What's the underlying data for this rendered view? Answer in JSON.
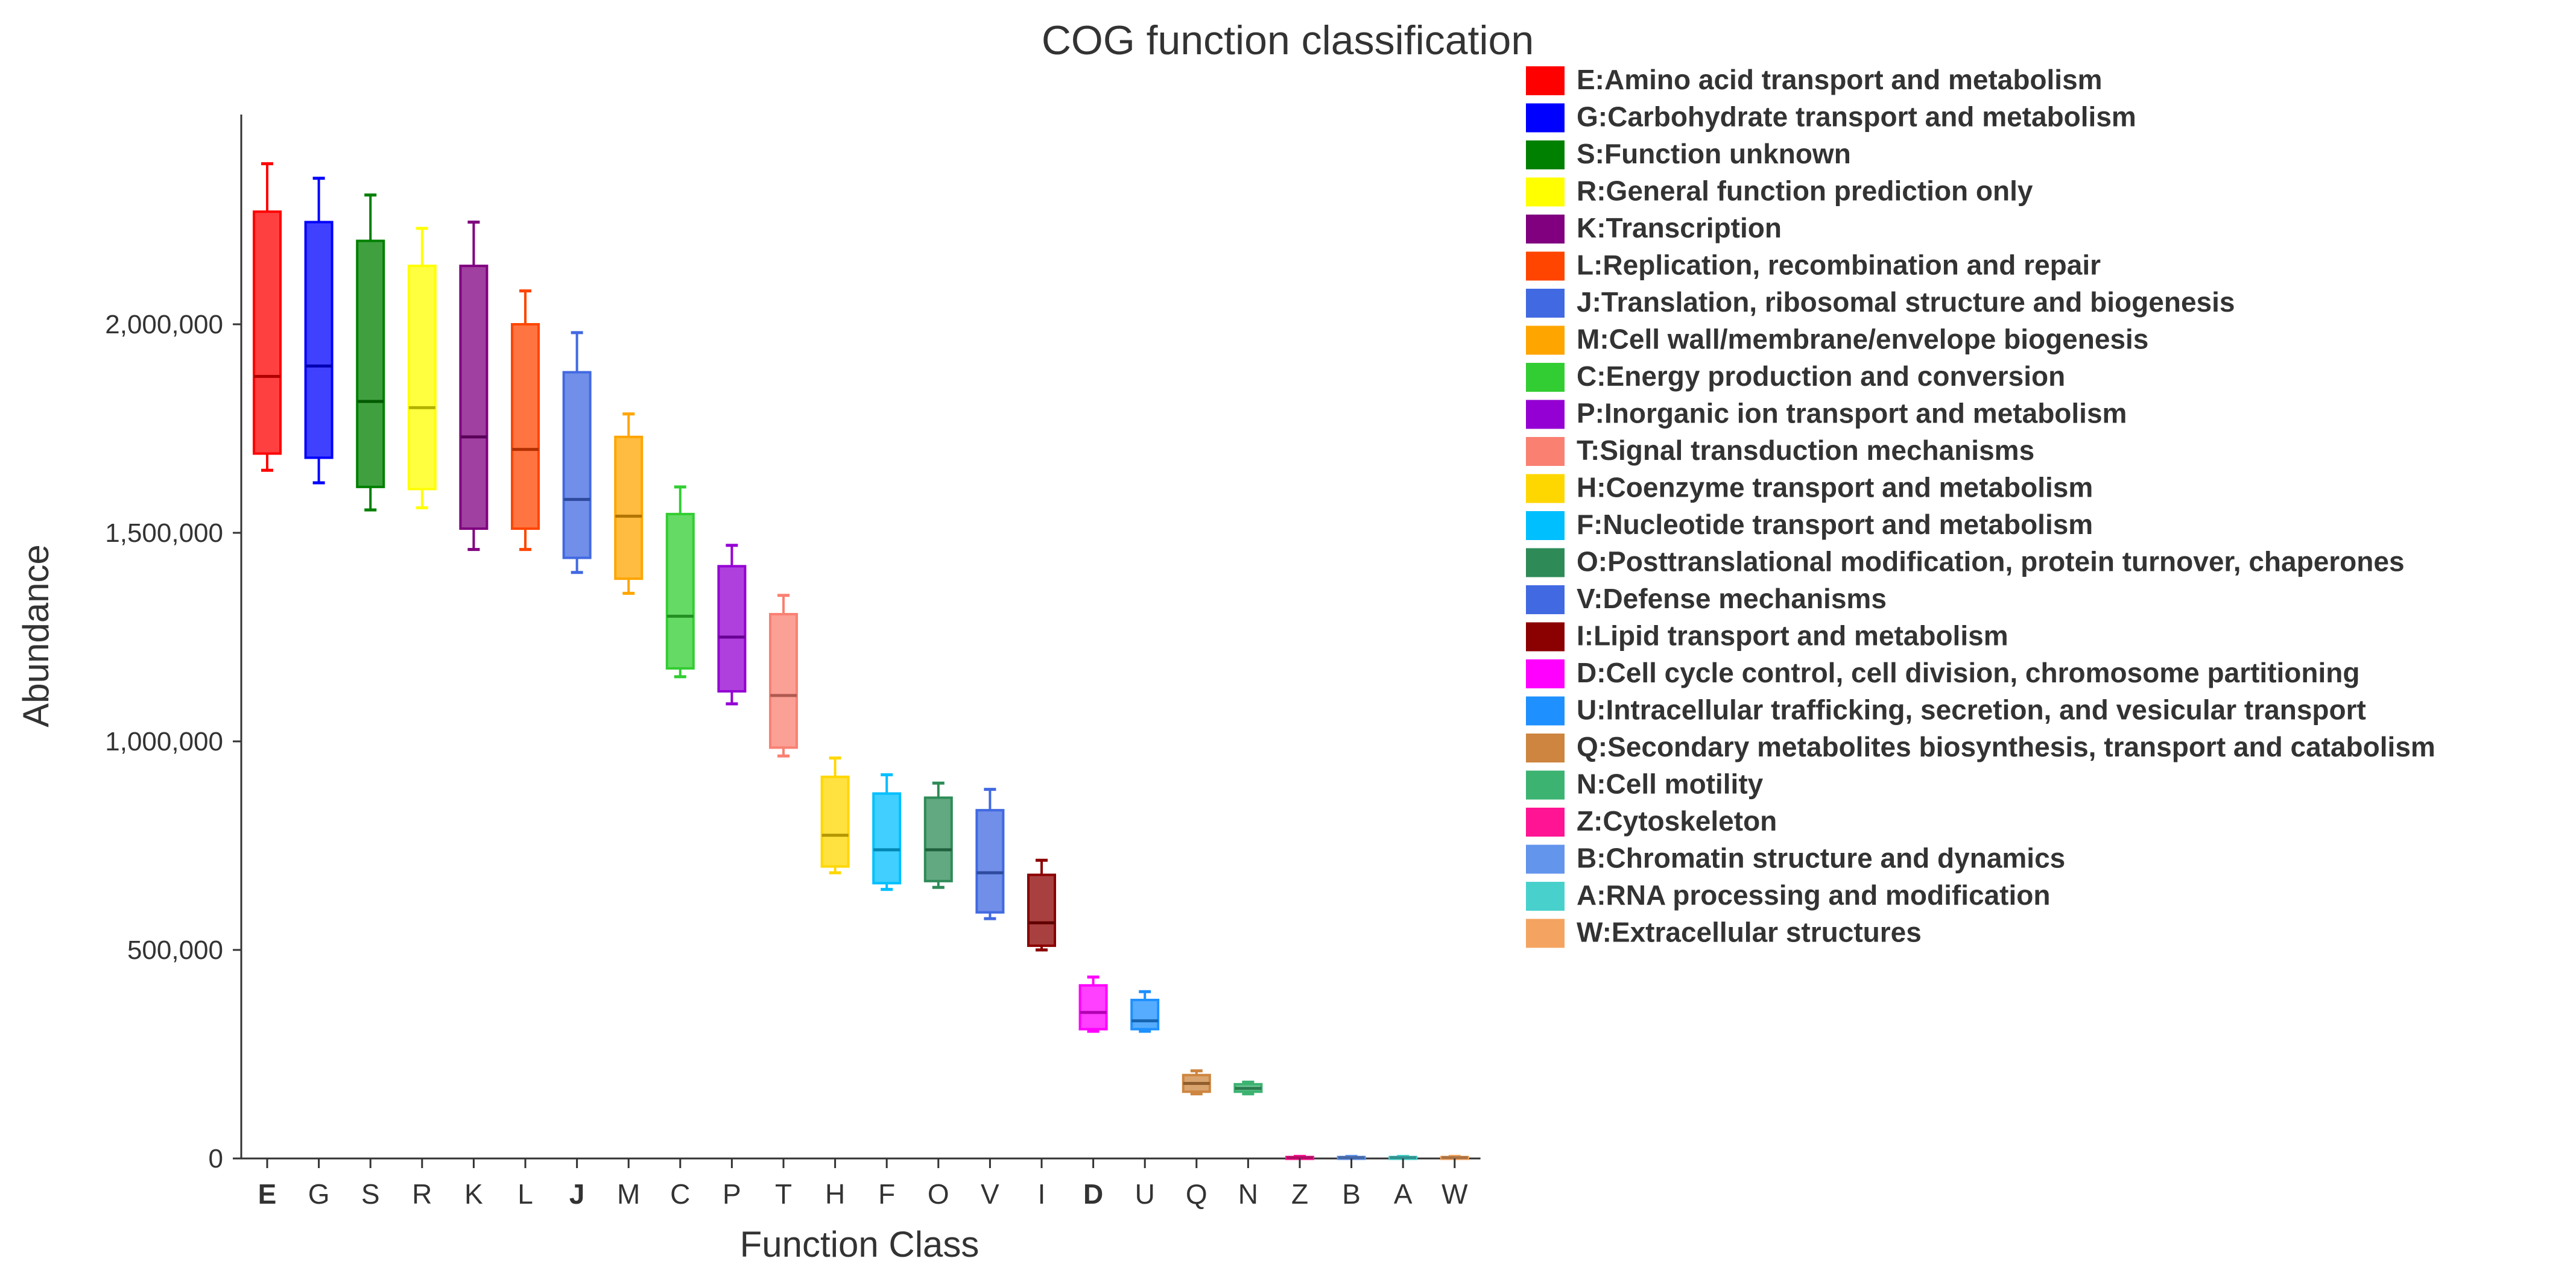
{
  "chart_data": {
    "type": "boxplot",
    "title": "COG function classification",
    "xlabel": "Function Class",
    "ylabel": "Abundance",
    "ylim": [
      0,
      2500000
    ],
    "yticks": [
      0,
      500000,
      1000000,
      1500000,
      2000000
    ],
    "ytick_labels": [
      "0",
      "500,000",
      "1,000,000",
      "1,500,000",
      "2,000,000"
    ],
    "legend_position": "right",
    "categories": [
      {
        "code": "E",
        "label": "E:Amino acid transport and metabolism",
        "color": "#FF0000",
        "min": 1650000,
        "q1": 1690000,
        "median": 1875000,
        "q3": 2270000,
        "max": 2385000,
        "bold": true
      },
      {
        "code": "G",
        "label": "G:Carbohydrate transport and metabolism",
        "color": "#0000FF",
        "min": 1620000,
        "q1": 1680000,
        "median": 1900000,
        "q3": 2245000,
        "max": 2350000,
        "bold": false
      },
      {
        "code": "S",
        "label": "S:Function unknown",
        "color": "#008000",
        "min": 1555000,
        "q1": 1610000,
        "median": 1815000,
        "q3": 2200000,
        "max": 2310000,
        "bold": false
      },
      {
        "code": "R",
        "label": "R:General function prediction only",
        "color": "#FFFF00",
        "min": 1560000,
        "q1": 1605000,
        "median": 1800000,
        "q3": 2140000,
        "max": 2230000,
        "bold": false
      },
      {
        "code": "K",
        "label": "K:Transcription",
        "color": "#800080",
        "min": 1460000,
        "q1": 1510000,
        "median": 1730000,
        "q3": 2140000,
        "max": 2245000,
        "bold": false
      },
      {
        "code": "L",
        "label": "L:Replication, recombination and repair",
        "color": "#FF4500",
        "min": 1460000,
        "q1": 1510000,
        "median": 1700000,
        "q3": 2000000,
        "max": 2080000,
        "bold": false
      },
      {
        "code": "J",
        "label": "J:Translation, ribosomal structure and biogenesis",
        "color": "#4169E1",
        "min": 1405000,
        "q1": 1440000,
        "median": 1580000,
        "q3": 1885000,
        "max": 1980000,
        "bold": true
      },
      {
        "code": "M",
        "label": "M:Cell wall/membrane/envelope biogenesis",
        "color": "#FFA500",
        "min": 1355000,
        "q1": 1390000,
        "median": 1540000,
        "q3": 1730000,
        "max": 1785000,
        "bold": false
      },
      {
        "code": "C",
        "label": "C:Energy production and conversion",
        "color": "#32CD32",
        "min": 1155000,
        "q1": 1175000,
        "median": 1300000,
        "q3": 1545000,
        "max": 1610000,
        "bold": false
      },
      {
        "code": "P",
        "label": "P:Inorganic ion transport and metabolism",
        "color": "#9400D3",
        "min": 1090000,
        "q1": 1120000,
        "median": 1250000,
        "q3": 1420000,
        "max": 1470000,
        "bold": false
      },
      {
        "code": "T",
        "label": "T:Signal transduction mechanisms",
        "color": "#FA8072",
        "min": 965000,
        "q1": 985000,
        "median": 1110000,
        "q3": 1305000,
        "max": 1350000,
        "bold": false
      },
      {
        "code": "H",
        "label": "H:Coenzyme transport and metabolism",
        "color": "#FFD700",
        "min": 685000,
        "q1": 700000,
        "median": 775000,
        "q3": 915000,
        "max": 960000,
        "bold": false
      },
      {
        "code": "F",
        "label": "F:Nucleotide transport and metabolism",
        "color": "#00BFFF",
        "min": 645000,
        "q1": 660000,
        "median": 740000,
        "q3": 875000,
        "max": 920000,
        "bold": false
      },
      {
        "code": "O",
        "label": "O:Posttranslational modification, protein turnover, chaperones",
        "color": "#2E8B57",
        "min": 650000,
        "q1": 665000,
        "median": 740000,
        "q3": 865000,
        "max": 900000,
        "bold": false
      },
      {
        "code": "V",
        "label": "V:Defense mechanisms",
        "color": "#4169E1",
        "min": 575000,
        "q1": 590000,
        "median": 685000,
        "q3": 835000,
        "max": 885000,
        "bold": false
      },
      {
        "code": "I",
        "label": "I:Lipid transport and metabolism",
        "color": "#8B0000",
        "min": 500000,
        "q1": 510000,
        "median": 565000,
        "q3": 680000,
        "max": 715000,
        "bold": false
      },
      {
        "code": "D",
        "label": "D:Cell cycle control, cell division, chromosome partitioning",
        "color": "#FF00FF",
        "min": 305000,
        "q1": 310000,
        "median": 350000,
        "q3": 415000,
        "max": 435000,
        "bold": true
      },
      {
        "code": "U",
        "label": "U:Intracellular trafficking, secretion, and vesicular transport",
        "color": "#1E90FF",
        "min": 305000,
        "q1": 310000,
        "median": 330000,
        "q3": 380000,
        "max": 400000,
        "bold": false
      },
      {
        "code": "Q",
        "label": "Q:Secondary metabolites biosynthesis, transport and catabolism",
        "color": "#CD853F",
        "min": 155000,
        "q1": 160000,
        "median": 180000,
        "q3": 200000,
        "max": 210000,
        "bold": false
      },
      {
        "code": "N",
        "label": "N:Cell motility",
        "color": "#3CB371",
        "min": 155000,
        "q1": 160000,
        "median": 168000,
        "q3": 178000,
        "max": 183000,
        "bold": false
      },
      {
        "code": "Z",
        "label": "Z:Cytoskeleton",
        "color": "#FF1493",
        "min": 0,
        "q1": 1000,
        "median": 2000,
        "q3": 3500,
        "max": 5000,
        "bold": false
      },
      {
        "code": "B",
        "label": "B:Chromatin structure and dynamics",
        "color": "#6495ED",
        "min": 0,
        "q1": 1000,
        "median": 2000,
        "q3": 3500,
        "max": 5000,
        "bold": false
      },
      {
        "code": "A",
        "label": "A:RNA processing and modification",
        "color": "#48D1CC",
        "min": 0,
        "q1": 1000,
        "median": 2000,
        "q3": 3500,
        "max": 5000,
        "bold": false
      },
      {
        "code": "W",
        "label": "W:Extracellular structures",
        "color": "#F4A460",
        "min": 0,
        "q1": 1000,
        "median": 2000,
        "q3": 3500,
        "max": 5000,
        "bold": false
      }
    ]
  }
}
